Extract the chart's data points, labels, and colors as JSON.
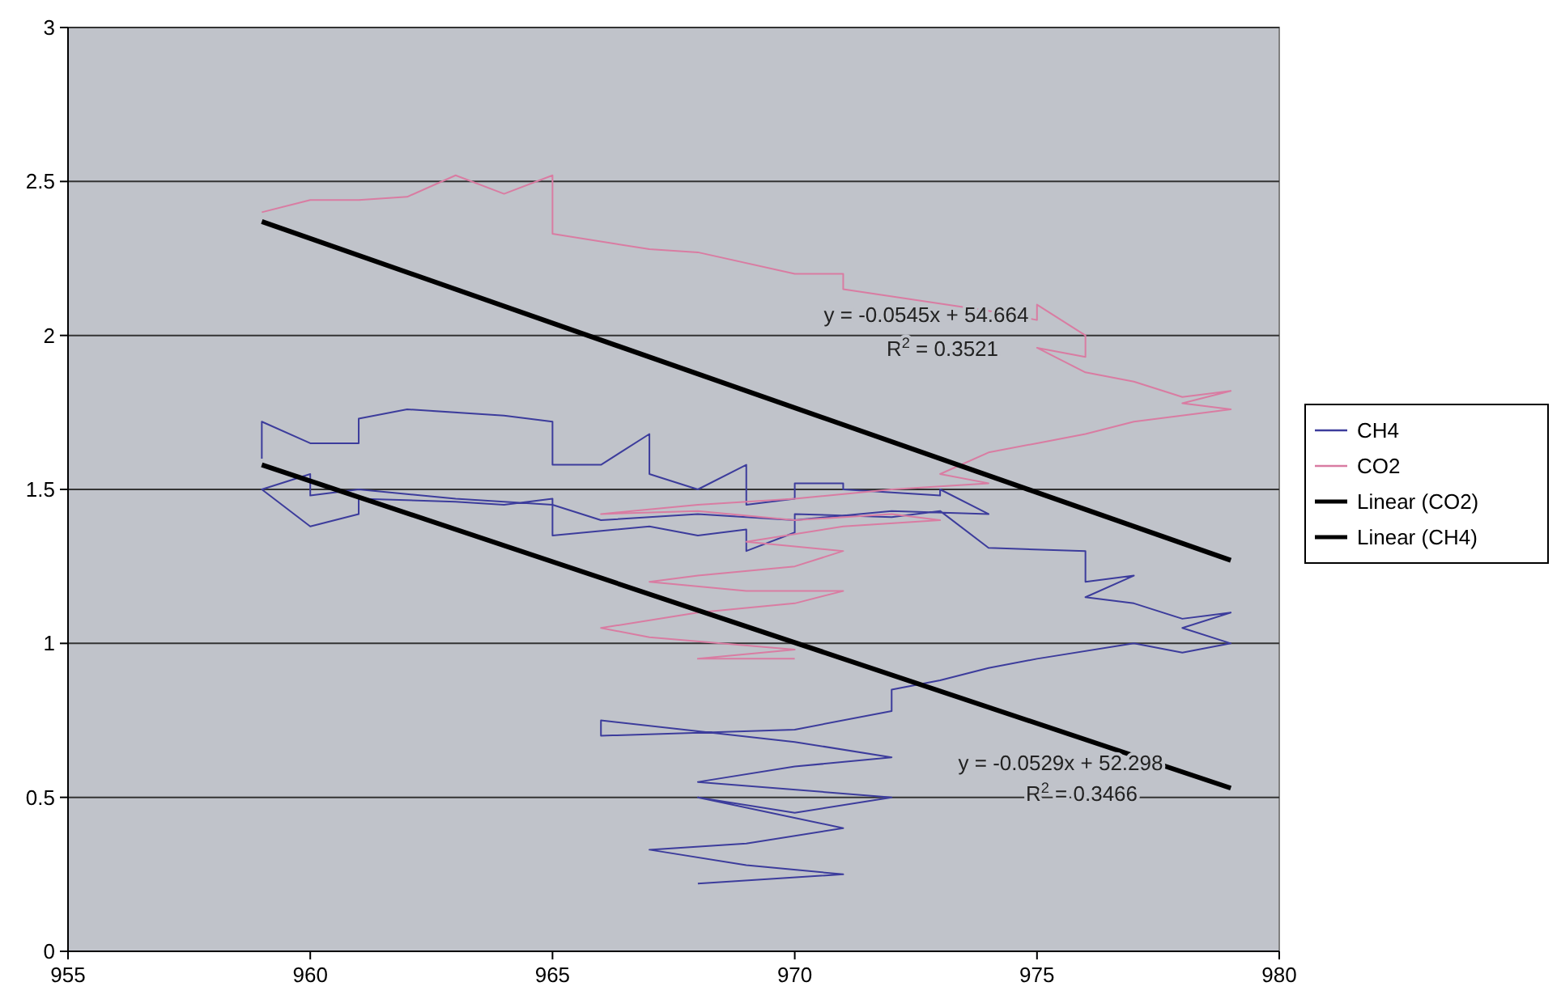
{
  "chart_data": {
    "type": "line",
    "xlim": [
      955,
      980
    ],
    "xticks": [
      955,
      960,
      965,
      970,
      975,
      980
    ],
    "ylim": [
      0,
      3
    ],
    "yticks": [
      0,
      0.5,
      1,
      1.5,
      2,
      2.5,
      3
    ],
    "grid": "y",
    "legend": "right",
    "marker": "none",
    "line_style": "solid",
    "series": [
      {
        "name": "CH4",
        "color": "#3c3c9c",
        "x": [
          959,
          959,
          960,
          961,
          961,
          962,
          964,
          965,
          965,
          966,
          967,
          967,
          968,
          969,
          969,
          970,
          970,
          971,
          971,
          973,
          973,
          974,
          972,
          970,
          968,
          966,
          965,
          963,
          961,
          960,
          960,
          959,
          960,
          961,
          961,
          963,
          964,
          965,
          965,
          967,
          968,
          969,
          969,
          970,
          970,
          972,
          973,
          974,
          976,
          976,
          977,
          976,
          977,
          978,
          979,
          978,
          979,
          978,
          977,
          975,
          974,
          973,
          972,
          972,
          970,
          966,
          966,
          970,
          972,
          970,
          968,
          972,
          970,
          968,
          971,
          969,
          967,
          969,
          971,
          968
        ],
        "values": [
          1.6,
          1.72,
          1.65,
          1.65,
          1.73,
          1.76,
          1.74,
          1.72,
          1.58,
          1.58,
          1.68,
          1.55,
          1.5,
          1.58,
          1.45,
          1.47,
          1.52,
          1.52,
          1.5,
          1.48,
          1.5,
          1.42,
          1.43,
          1.4,
          1.42,
          1.4,
          1.45,
          1.47,
          1.5,
          1.48,
          1.55,
          1.5,
          1.38,
          1.42,
          1.47,
          1.46,
          1.45,
          1.47,
          1.35,
          1.38,
          1.35,
          1.37,
          1.3,
          1.36,
          1.42,
          1.41,
          1.43,
          1.31,
          1.3,
          1.2,
          1.22,
          1.15,
          1.13,
          1.08,
          1.1,
          1.05,
          1,
          0.97,
          1,
          0.95,
          0.92,
          0.88,
          0.85,
          0.78,
          0.72,
          0.7,
          0.75,
          0.68,
          0.63,
          0.6,
          0.55,
          0.5,
          0.45,
          0.5,
          0.4,
          0.35,
          0.33,
          0.28,
          0.25,
          0.22
        ]
      },
      {
        "name": "CO2",
        "color": "#d97ca2",
        "x": [
          959,
          960,
          961,
          962,
          963,
          964,
          965,
          965,
          967,
          968,
          970,
          971,
          971,
          974,
          975,
          975,
          976,
          976,
          975,
          976,
          977,
          978,
          979,
          978,
          979,
          977,
          976,
          975,
          974,
          973,
          974,
          972,
          970,
          968,
          966,
          968,
          970,
          972,
          973,
          971,
          969,
          971,
          970,
          968,
          967,
          969,
          971,
          970,
          968,
          966,
          967,
          970,
          968,
          970
        ],
        "values": [
          2.4,
          2.44,
          2.44,
          2.45,
          2.52,
          2.46,
          2.52,
          2.33,
          2.28,
          2.27,
          2.2,
          2.2,
          2.15,
          2.08,
          2.05,
          2.1,
          2,
          1.93,
          1.96,
          1.88,
          1.85,
          1.8,
          1.82,
          1.78,
          1.76,
          1.72,
          1.68,
          1.65,
          1.62,
          1.55,
          1.52,
          1.5,
          1.47,
          1.45,
          1.42,
          1.43,
          1.4,
          1.42,
          1.4,
          1.38,
          1.33,
          1.3,
          1.25,
          1.22,
          1.2,
          1.17,
          1.17,
          1.13,
          1.1,
          1.05,
          1.02,
          0.98,
          0.95,
          0.95
        ]
      },
      {
        "name": "Linear (CO2)",
        "color": "#000000",
        "x": [
          959,
          979
        ],
        "values": [
          2.37,
          1.27
        ]
      },
      {
        "name": "Linear (CH4)",
        "color": "#000000",
        "x": [
          959,
          979
        ],
        "values": [
          1.58,
          0.53
        ]
      }
    ],
    "annotations": [
      "y = -0.0545x + 54.664",
      "R$^{2}$ = 0.3521",
      "y = -0.0529x + 52.298",
      "R$^{2}$ = 0.3466"
    ]
  }
}
